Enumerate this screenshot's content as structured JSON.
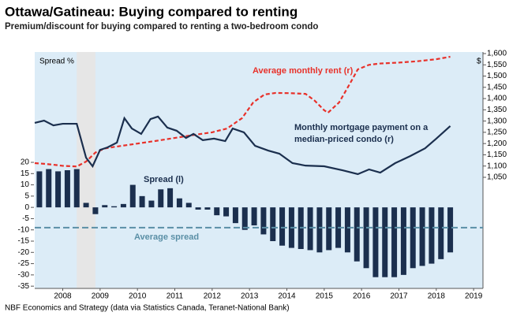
{
  "chart_data": {
    "type": "bar-line",
    "title": "Ottawa/Gatineau: Buying compared to renting",
    "subtitle": "Premium/discount for buying compared to renting a two-bedroom condo",
    "source": "NBF Economics and Strategy (data via Statistics Canada, Teranet-National Bank)",
    "y_axis_label": "Spread %",
    "y2_axis_label": "$",
    "annotations": [
      "Average monthly rent (r)",
      "Monthly mortgage payment on a",
      "median-priced condo (r)",
      "Spread (l)",
      "Average spread"
    ],
    "xlim": [
      2007.75,
      2019.75
    ],
    "xticks": [
      {
        "value": 2008.5,
        "label": "2008"
      },
      {
        "value": 2009.5,
        "label": "2009"
      },
      {
        "value": 2010.5,
        "label": "2010"
      },
      {
        "value": 2011.5,
        "label": "2011"
      },
      {
        "value": 2012.5,
        "label": "2012"
      },
      {
        "value": 2013.5,
        "label": "2013"
      },
      {
        "value": 2014.5,
        "label": "2014"
      },
      {
        "value": 2015.5,
        "label": "2015"
      },
      {
        "value": 2016.5,
        "label": "2016"
      },
      {
        "value": 2017.5,
        "label": "2017"
      },
      {
        "value": 2018.5,
        "label": "2018"
      },
      {
        "value": 2019.5,
        "label": "2019"
      }
    ],
    "ylim": [
      -36,
      69
    ],
    "yticks": [
      20,
      15,
      10,
      5,
      0,
      -5,
      -10,
      -15,
      -20,
      -25,
      -30,
      -35
    ],
    "y2lim": [
      556,
      1607
    ],
    "y2ticks": [
      {
        "value": 1050,
        "label": "1,050"
      },
      {
        "value": 1100,
        "label": "1,100"
      },
      {
        "value": 1150,
        "label": "1,150"
      },
      {
        "value": 1200,
        "label": "1,200"
      },
      {
        "value": 1250,
        "label": "1,250"
      },
      {
        "value": 1300,
        "label": "1,300"
      },
      {
        "value": 1350,
        "label": "1,350"
      },
      {
        "value": 1400,
        "label": "1,400"
      },
      {
        "value": 1450,
        "label": "1,450"
      },
      {
        "value": 1500,
        "label": "1,500"
      },
      {
        "value": 1550,
        "label": "1,550"
      },
      {
        "value": 1600,
        "label": "1,600"
      }
    ],
    "shaded_region": [
      2008.875,
      2009.375
    ],
    "average_spread": -9,
    "series": [
      {
        "name": "Spread (l)",
        "kind": "bar",
        "color": "#1b2f4e",
        "x": [
          2007.875,
          2008.125,
          2008.375,
          2008.625,
          2008.875,
          2009.125,
          2009.375,
          2009.625,
          2009.875,
          2010.125,
          2010.375,
          2010.625,
          2010.875,
          2011.125,
          2011.375,
          2011.625,
          2011.875,
          2012.125,
          2012.375,
          2012.625,
          2012.875,
          2013.125,
          2013.375,
          2013.625,
          2013.875,
          2014.125,
          2014.375,
          2014.625,
          2014.875,
          2015.125,
          2015.375,
          2015.625,
          2015.875,
          2016.125,
          2016.375,
          2016.625,
          2016.875,
          2017.125,
          2017.375,
          2017.625,
          2017.875,
          2018.125,
          2018.375,
          2018.625,
          2018.875
        ],
        "values": [
          16,
          17,
          16,
          16.5,
          17,
          2,
          -3,
          1,
          0.5,
          1.5,
          10,
          5,
          3,
          8,
          8.5,
          4,
          2,
          -1,
          -1,
          -3.5,
          -4,
          -7,
          -10,
          -8,
          -12,
          -15,
          -17,
          -18,
          -18.5,
          -19,
          -20,
          -19,
          -18,
          -20,
          -24,
          -27,
          -31,
          -31,
          -31,
          -30,
          -27,
          -26,
          -25,
          -23,
          -20
        ]
      },
      {
        "name": "Average monthly rent (r)",
        "kind": "line",
        "axis": "y2",
        "color": "#e8312a",
        "x": [
          2007.75,
          2008.0,
          2008.25,
          2008.5,
          2008.875,
          2009.125,
          2009.375,
          2009.625,
          2009.875,
          2010.5,
          2011.0,
          2011.5,
          2012.0,
          2012.5,
          2012.9,
          2013.3,
          2013.6,
          2013.9,
          2014.2,
          2014.6,
          2015.0,
          2015.25,
          2015.5,
          2015.6,
          2015.9,
          2016.2,
          2016.4,
          2016.7,
          2017.0,
          2017.5,
          2018.0,
          2018.5,
          2018.875
        ],
        "values": [
          1113,
          1110,
          1106,
          1101,
          1098,
          1120,
          1160,
          1178,
          1185,
          1200,
          1212,
          1225,
          1238,
          1250,
          1267,
          1313,
          1383,
          1418,
          1425,
          1424,
          1421,
          1390,
          1348,
          1337,
          1383,
          1470,
          1530,
          1550,
          1556,
          1560,
          1566,
          1575,
          1586
        ]
      },
      {
        "name": "Monthly mortgage payment on a median-priced condo (r)",
        "kind": "line",
        "axis": "y2",
        "color": "#1b2f4e",
        "x": [
          2007.75,
          2008.0,
          2008.25,
          2008.5,
          2008.875,
          2009.125,
          2009.3,
          2009.5,
          2009.7,
          2009.95,
          2010.15,
          2010.35,
          2010.6,
          2010.85,
          2011.05,
          2011.3,
          2011.55,
          2011.8,
          2012.0,
          2012.25,
          2012.55,
          2012.85,
          2013.05,
          2013.35,
          2013.65,
          2014.0,
          2014.3,
          2014.65,
          2015.0,
          2015.5,
          2016.0,
          2016.4,
          2016.7,
          2017.0,
          2017.4,
          2017.8,
          2018.2,
          2018.5,
          2018.875
        ],
        "values": [
          1292,
          1302,
          1281,
          1288,
          1288,
          1137,
          1099,
          1172,
          1183,
          1204,
          1313,
          1267,
          1243,
          1309,
          1320,
          1271,
          1257,
          1225,
          1243,
          1215,
          1222,
          1211,
          1267,
          1250,
          1190,
          1169,
          1155,
          1113,
          1102,
          1099,
          1081,
          1064,
          1085,
          1071,
          1113,
          1144,
          1179,
          1222,
          1278
        ]
      }
    ]
  }
}
